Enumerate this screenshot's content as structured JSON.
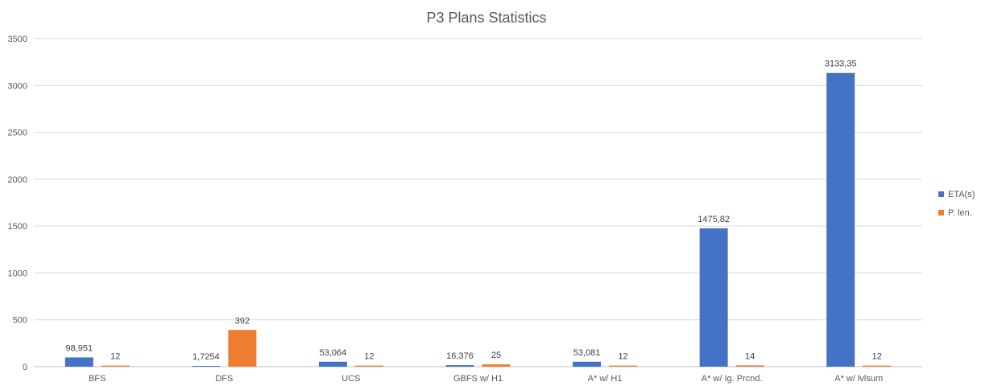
{
  "chart_data": {
    "type": "bar",
    "title": "P3 Plans Statistics",
    "xlabel": "",
    "ylabel": "",
    "categories": [
      "BFS",
      "DFS",
      "UCS",
      "GBFS w/ H1",
      "A* w/ H1",
      "A* w/ Ig. Prcnd.",
      "A* w/ lvlsum"
    ],
    "series": [
      {
        "name": "ETA(s)",
        "color": "#4472C4",
        "values": [
          98.951,
          1.7254,
          53.064,
          16.376,
          53.081,
          1475.82,
          3133.35
        ],
        "labels": [
          "98,951",
          "1,7254",
          "53,064",
          "16,376",
          "53,081",
          "1475,82",
          "3133,35"
        ]
      },
      {
        "name": "P. len.",
        "color": "#ED7D31",
        "values": [
          12,
          392,
          12,
          25,
          12,
          14,
          12
        ],
        "labels": [
          "12",
          "392",
          "12",
          "25",
          "12",
          "14",
          "12"
        ]
      }
    ],
    "ylim": [
      0,
      3500
    ],
    "yticks": [
      0,
      500,
      1000,
      1500,
      2000,
      2500,
      3000,
      3500
    ],
    "grid": true,
    "legend_position": "right"
  }
}
